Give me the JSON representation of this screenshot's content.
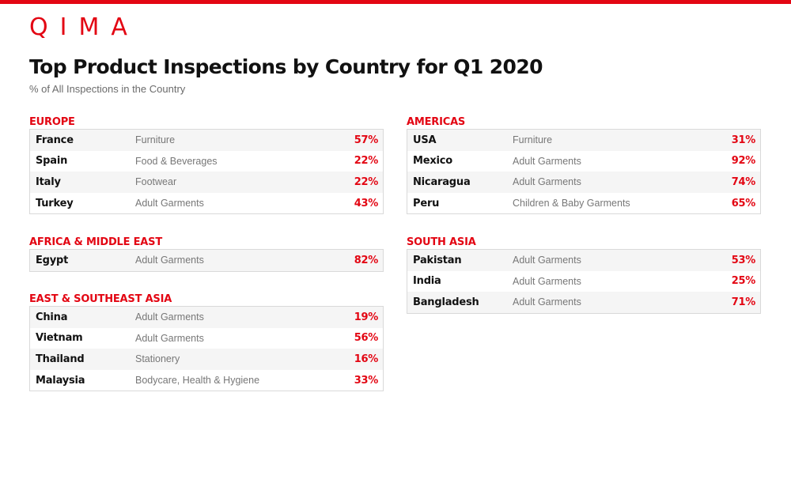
{
  "brand": {
    "logo_text": "QIMA",
    "accent": "#e30613"
  },
  "header": {
    "title": "Top Product Inspections by Country for Q1 2020",
    "subtitle": "% of All Inspections in the Country"
  },
  "regions": {
    "europe": {
      "title": "EUROPE",
      "rows": [
        {
          "country": "France",
          "product": "Furniture",
          "pct": "57%"
        },
        {
          "country": "Spain",
          "product": "Food & Beverages",
          "pct": "22%"
        },
        {
          "country": "Italy",
          "product": "Footwear",
          "pct": "22%"
        },
        {
          "country": "Turkey",
          "product": "Adult Garments",
          "pct": "43%"
        }
      ]
    },
    "africa_middle_east": {
      "title": "AFRICA & MIDDLE EAST",
      "rows": [
        {
          "country": "Egypt",
          "product": "Adult Garments",
          "pct": "82%"
        }
      ]
    },
    "east_southeast_asia": {
      "title": "EAST & SOUTHEAST ASIA",
      "rows": [
        {
          "country": "China",
          "product": "Adult Garments",
          "pct": "19%"
        },
        {
          "country": "Vietnam",
          "product": "Adult Garments",
          "pct": "56%"
        },
        {
          "country": "Thailand",
          "product": "Stationery",
          "pct": "16%"
        },
        {
          "country": "Malaysia",
          "product": "Bodycare, Health & Hygiene",
          "pct": "33%"
        }
      ]
    },
    "americas": {
      "title": "AMERICAS",
      "rows": [
        {
          "country": "USA",
          "product": "Furniture",
          "pct": "31%"
        },
        {
          "country": "Mexico",
          "product": "Adult Garments",
          "pct": "92%"
        },
        {
          "country": "Nicaragua",
          "product": "Adult Garments",
          "pct": "74%"
        },
        {
          "country": "Peru",
          "product": "Children & Baby Garments",
          "pct": "65%"
        }
      ]
    },
    "south_asia": {
      "title": "SOUTH ASIA",
      "rows": [
        {
          "country": "Pakistan",
          "product": "Adult Garments",
          "pct": "53%"
        },
        {
          "country": "India",
          "product": "Adult Garments",
          "pct": "25%"
        },
        {
          "country": "Bangladesh",
          "product": "Adult Garments",
          "pct": "71%"
        }
      ]
    }
  }
}
